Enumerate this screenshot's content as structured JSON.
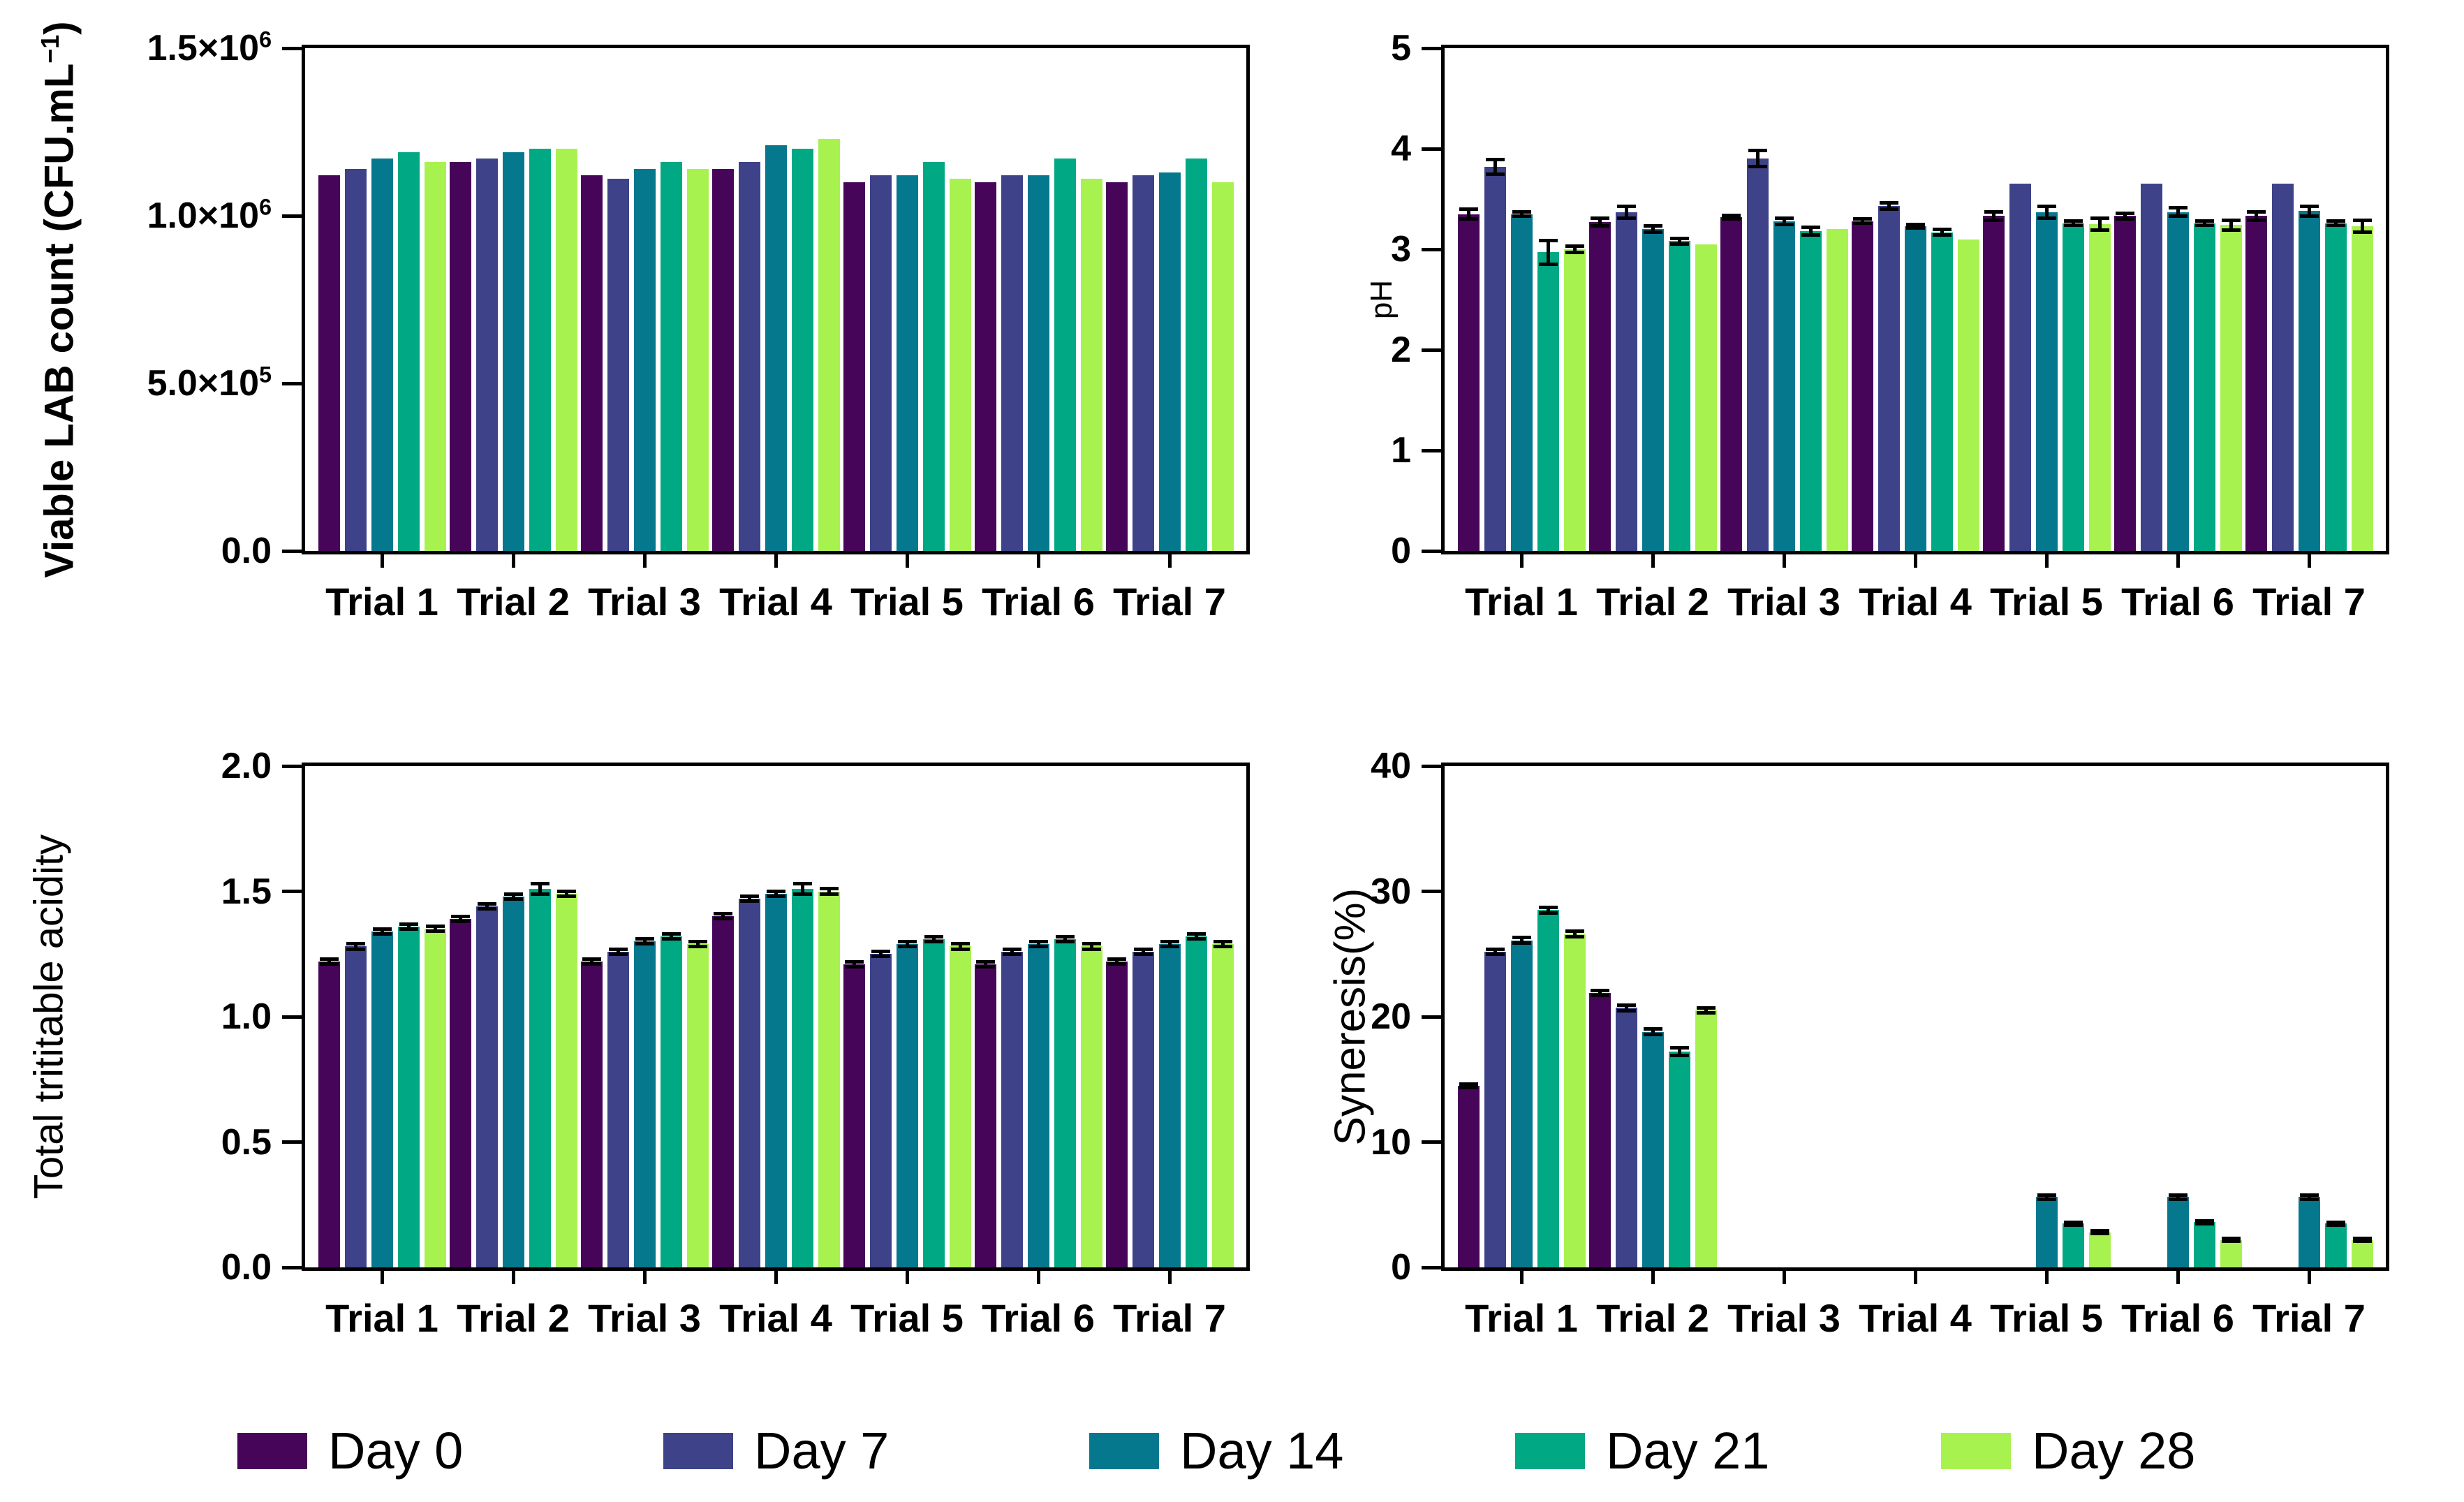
{
  "figure": {
    "background": "#ffffff"
  },
  "legend": {
    "position": "bottom",
    "items": [
      {
        "label": "Day 0",
        "color": "#470559"
      },
      {
        "label": "Day 7",
        "color": "#3E4289"
      },
      {
        "label": "Day 14",
        "color": "#06788E"
      },
      {
        "label": "Day 21",
        "color": "#00A884"
      },
      {
        "label": "Day 28",
        "color": "#A8F250"
      }
    ]
  },
  "chart_data": [
    {
      "id": "viable-lab-count",
      "type": "bar",
      "title": "",
      "xlabel": "",
      "ylabel_parts": [
        {
          "t": "Viable LAB count (CFU.mL"
        },
        {
          "t": "−1",
          "sup": true
        },
        {
          "t": ")"
        }
      ],
      "ylim": [
        0,
        1500000
      ],
      "grid": false,
      "yticks": [
        {
          "t": "0.0",
          "v": 0
        },
        {
          "t": "5.0×10",
          "sup": "5",
          "v": 500000
        },
        {
          "t": "1.0×10",
          "sup": "6",
          "v": 1000000
        },
        {
          "t": "1.5×10",
          "sup": "6",
          "v": 1500000
        }
      ],
      "categories": [
        "Trial 1",
        "Trial 2",
        "Trial 3",
        "Trial 4",
        "Trial 5",
        "Trial 6",
        "Trial 7"
      ],
      "series": [
        {
          "name": "Day 0",
          "values": [
            1120000,
            1160000,
            1120000,
            1140000,
            1100000,
            1100000,
            1100000
          ]
        },
        {
          "name": "Day 7",
          "values": [
            1140000,
            1170000,
            1110000,
            1160000,
            1120000,
            1120000,
            1120000
          ]
        },
        {
          "name": "Day 14",
          "values": [
            1170000,
            1190000,
            1140000,
            1210000,
            1120000,
            1120000,
            1130000
          ]
        },
        {
          "name": "Day 21",
          "values": [
            1190000,
            1200000,
            1160000,
            1200000,
            1160000,
            1170000,
            1170000
          ]
        },
        {
          "name": "Day 28",
          "values": [
            1160000,
            1200000,
            1140000,
            1230000,
            1110000,
            1110000,
            1100000
          ]
        }
      ]
    },
    {
      "id": "ph",
      "type": "bar",
      "title": "",
      "xlabel": "",
      "ylabel_parts": [
        {
          "t": "pH"
        }
      ],
      "ylim": [
        0,
        5
      ],
      "grid": false,
      "yticks": [
        {
          "t": "0",
          "v": 0
        },
        {
          "t": "1",
          "v": 1
        },
        {
          "t": "2",
          "v": 2
        },
        {
          "t": "3",
          "v": 3
        },
        {
          "t": "4",
          "v": 4
        },
        {
          "t": "5",
          "v": 5
        }
      ],
      "categories": [
        "Trial 1",
        "Trial 2",
        "Trial 3",
        "Trial 4",
        "Trial 5",
        "Trial 6",
        "Trial 7"
      ],
      "series": [
        {
          "name": "Day 0",
          "values": [
            3.35,
            3.27,
            3.32,
            3.28,
            3.33,
            3.33,
            3.33
          ],
          "errors": [
            0.05,
            0.04,
            0.02,
            0.02,
            0.04,
            0.03,
            0.04
          ]
        },
        {
          "name": "Day 7",
          "values": [
            3.82,
            3.37,
            3.9,
            3.43,
            3.65,
            3.65,
            3.65
          ],
          "errors": [
            0.07,
            0.06,
            0.08,
            0.03,
            0,
            0,
            0
          ]
        },
        {
          "name": "Day 14",
          "values": [
            3.35,
            3.2,
            3.28,
            3.23,
            3.37,
            3.37,
            3.38
          ],
          "errors": [
            0.02,
            0.03,
            0.03,
            0.02,
            0.06,
            0.04,
            0.05
          ]
        },
        {
          "name": "Day 21",
          "values": [
            2.97,
            3.08,
            3.18,
            3.17,
            3.26,
            3.26,
            3.26
          ],
          "errors": [
            0.12,
            0.03,
            0.04,
            0.03,
            0.02,
            0.02,
            0.02
          ]
        },
        {
          "name": "Day 28",
          "values": [
            3.0,
            3.05,
            3.2,
            3.1,
            3.25,
            3.24,
            3.23
          ],
          "errors": [
            0.03,
            0,
            0,
            0,
            0.06,
            0.05,
            0.06
          ]
        }
      ]
    },
    {
      "id": "total-trititable-acidity",
      "type": "bar",
      "title": "",
      "xlabel": "",
      "ylabel_parts": [
        {
          "t": "Total trititable acidity"
        }
      ],
      "ylim": [
        0,
        2
      ],
      "grid": false,
      "yticks": [
        {
          "t": "0.0",
          "v": 0
        },
        {
          "t": "0.5",
          "v": 0.5
        },
        {
          "t": "1.0",
          "v": 1.0
        },
        {
          "t": "1.5",
          "v": 1.5
        },
        {
          "t": "2.0",
          "v": 2.0
        }
      ],
      "categories": [
        "Trial 1",
        "Trial 2",
        "Trial 3",
        "Trial 4",
        "Trial 5",
        "Trial 6",
        "Trial 7"
      ],
      "series": [
        {
          "name": "Day 0",
          "values": [
            1.22,
            1.39,
            1.22,
            1.4,
            1.21,
            1.21,
            1.22
          ],
          "errors": [
            0.01,
            0.01,
            0.01,
            0.01,
            0.01,
            0.01,
            0.01
          ]
        },
        {
          "name": "Day 7",
          "values": [
            1.28,
            1.44,
            1.26,
            1.47,
            1.25,
            1.26,
            1.26
          ],
          "errors": [
            0.01,
            0.01,
            0.01,
            0.01,
            0.01,
            0.01,
            0.01
          ]
        },
        {
          "name": "Day 14",
          "values": [
            1.34,
            1.48,
            1.3,
            1.49,
            1.29,
            1.29,
            1.29
          ],
          "errors": [
            0.01,
            0.01,
            0.01,
            0.01,
            0.01,
            0.01,
            0.01
          ]
        },
        {
          "name": "Day 21",
          "values": [
            1.36,
            1.51,
            1.32,
            1.51,
            1.31,
            1.31,
            1.32
          ],
          "errors": [
            0.01,
            0.02,
            0.01,
            0.02,
            0.01,
            0.01,
            0.01
          ]
        },
        {
          "name": "Day 28",
          "values": [
            1.35,
            1.49,
            1.29,
            1.5,
            1.28,
            1.28,
            1.29
          ],
          "errors": [
            0.01,
            0.01,
            0.01,
            0.01,
            0.01,
            0.01,
            0.01
          ]
        }
      ]
    },
    {
      "id": "syneresis",
      "type": "bar",
      "title": "",
      "xlabel": "",
      "ylabel_parts": [
        {
          "t": "Syneresis(%)"
        }
      ],
      "ylim": [
        0,
        40
      ],
      "grid": false,
      "yticks": [
        {
          "t": "0",
          "v": 0
        },
        {
          "t": "10",
          "v": 10
        },
        {
          "t": "20",
          "v": 20
        },
        {
          "t": "30",
          "v": 30
        },
        {
          "t": "40",
          "v": 40
        }
      ],
      "categories": [
        "Trial 1",
        "Trial 2",
        "Trial 3",
        "Trial 4",
        "Trial 5",
        "Trial 6",
        "Trial 7"
      ],
      "series": [
        {
          "name": "Day 0",
          "values": [
            14.5,
            21.9,
            0,
            0,
            0,
            0,
            0
          ],
          "errors": [
            0.15,
            0.2,
            0,
            0,
            0,
            0,
            0
          ]
        },
        {
          "name": "Day 7",
          "values": [
            25.2,
            20.7,
            0,
            0,
            0,
            0,
            0
          ],
          "errors": [
            0.2,
            0.2,
            0,
            0,
            0,
            0,
            0
          ]
        },
        {
          "name": "Day 14",
          "values": [
            26.1,
            18.8,
            0,
            0,
            5.6,
            5.6,
            5.6
          ],
          "errors": [
            0.2,
            0.2,
            0,
            0,
            0.15,
            0.15,
            0.15
          ]
        },
        {
          "name": "Day 21",
          "values": [
            28.5,
            17.2,
            0,
            0,
            3.5,
            3.6,
            3.5
          ],
          "errors": [
            0.2,
            0.3,
            0,
            0,
            0.12,
            0.12,
            0.12
          ]
        },
        {
          "name": "Day 28",
          "values": [
            26.6,
            20.5,
            0,
            0,
            2.8,
            2.2,
            2.2
          ],
          "errors": [
            0.2,
            0.2,
            0,
            0,
            0.1,
            0.1,
            0.1
          ]
        }
      ]
    }
  ]
}
